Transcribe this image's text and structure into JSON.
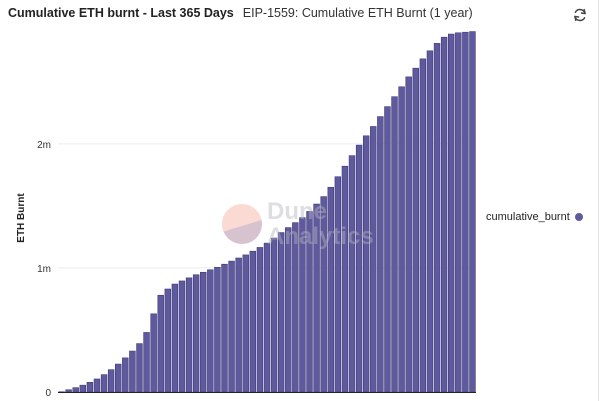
{
  "header": {
    "title": "Cumulative ETH burnt - Last 365 Days",
    "subtitle": "EIP-1559: Cumulative ETH Burnt (1 year)"
  },
  "icons": {
    "refresh": "refresh-icon"
  },
  "watermark": {
    "line1": "Dune",
    "line2": "Analytics"
  },
  "colors": {
    "bar": "#5f5a9e",
    "bar_stroke": "#3e3a78",
    "grid": "#ececec"
  },
  "chart_data": {
    "type": "bar",
    "title": "Cumulative ETH burnt - Last 365 Days",
    "ylabel": "ETH Burnt",
    "xlabel": "",
    "y_ticks": [
      0,
      1000000,
      2000000
    ],
    "y_tick_labels": [
      "0",
      "1m",
      "2m"
    ],
    "ylim": [
      0,
      2950000
    ],
    "grid": true,
    "legend_position": "right",
    "series": [
      {
        "name": "cumulative_burnt",
        "values": [
          2000,
          18000,
          35000,
          55000,
          78000,
          105000,
          140000,
          180000,
          225000,
          275000,
          330000,
          390000,
          480000,
          630000,
          780000,
          830000,
          870000,
          895000,
          920000,
          945000,
          965000,
          985000,
          1005000,
          1030000,
          1055000,
          1080000,
          1105000,
          1135000,
          1165000,
          1200000,
          1240000,
          1285000,
          1325000,
          1365000,
          1405000,
          1455000,
          1515000,
          1575000,
          1650000,
          1735000,
          1820000,
          1905000,
          1990000,
          2065000,
          2140000,
          2220000,
          2300000,
          2380000,
          2460000,
          2540000,
          2610000,
          2685000,
          2750000,
          2810000,
          2860000,
          2885000,
          2895000,
          2900000,
          2905000
        ]
      }
    ]
  }
}
